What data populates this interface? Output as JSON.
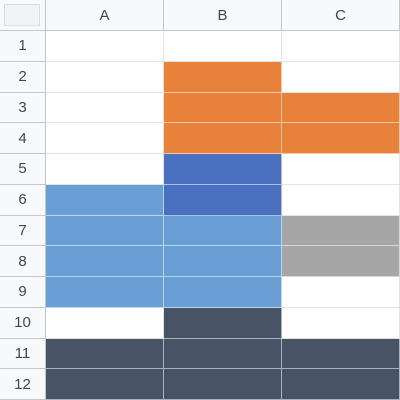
{
  "sheet": {
    "columns": [
      "A",
      "B",
      "C"
    ],
    "rows": [
      "1",
      "2",
      "3",
      "4",
      "5",
      "6",
      "7",
      "8",
      "9",
      "10",
      "11",
      "12"
    ],
    "colors": {
      "orange": "#e8813a",
      "light_blue": "#6a9fd6",
      "dark_blue": "#4a71c0",
      "gray": "#a6a6a6",
      "slate": "#485466",
      "white": "#ffffff"
    },
    "fills": [
      [
        "white",
        "white",
        "white"
      ],
      [
        "white",
        "orange",
        "white"
      ],
      [
        "white",
        "orange",
        "orange"
      ],
      [
        "white",
        "orange",
        "orange"
      ],
      [
        "white",
        "dark_blue",
        "white"
      ],
      [
        "light_blue",
        "dark_blue",
        "white"
      ],
      [
        "light_blue",
        "light_blue",
        "gray"
      ],
      [
        "light_blue",
        "light_blue",
        "gray"
      ],
      [
        "light_blue",
        "light_blue",
        "white"
      ],
      [
        "white",
        "slate",
        "white"
      ],
      [
        "slate",
        "slate",
        "slate"
      ],
      [
        "slate",
        "slate",
        "slate"
      ]
    ]
  }
}
